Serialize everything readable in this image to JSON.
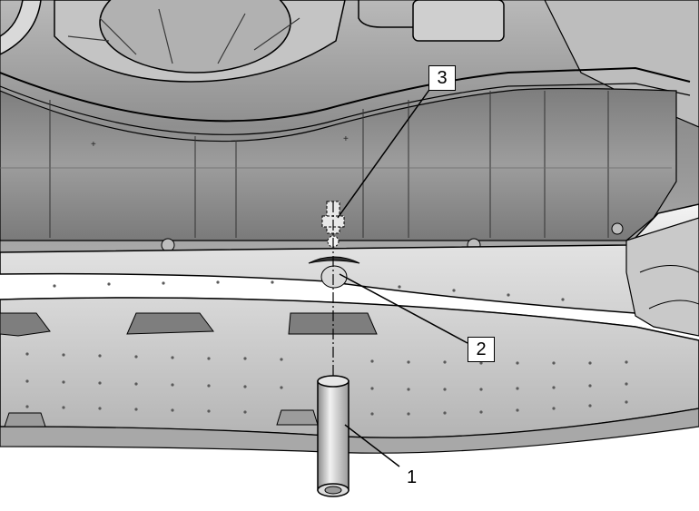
{
  "callouts": {
    "c1": {
      "label": "1"
    },
    "c2": {
      "label": "2"
    },
    "c3": {
      "label": "3"
    }
  },
  "colors": {
    "line": "#000000",
    "metal_light": "#ececec",
    "metal_mid": "#c8c8c8",
    "metal_dark": "#8e8e8e",
    "shadow": "#5a5a5a"
  }
}
